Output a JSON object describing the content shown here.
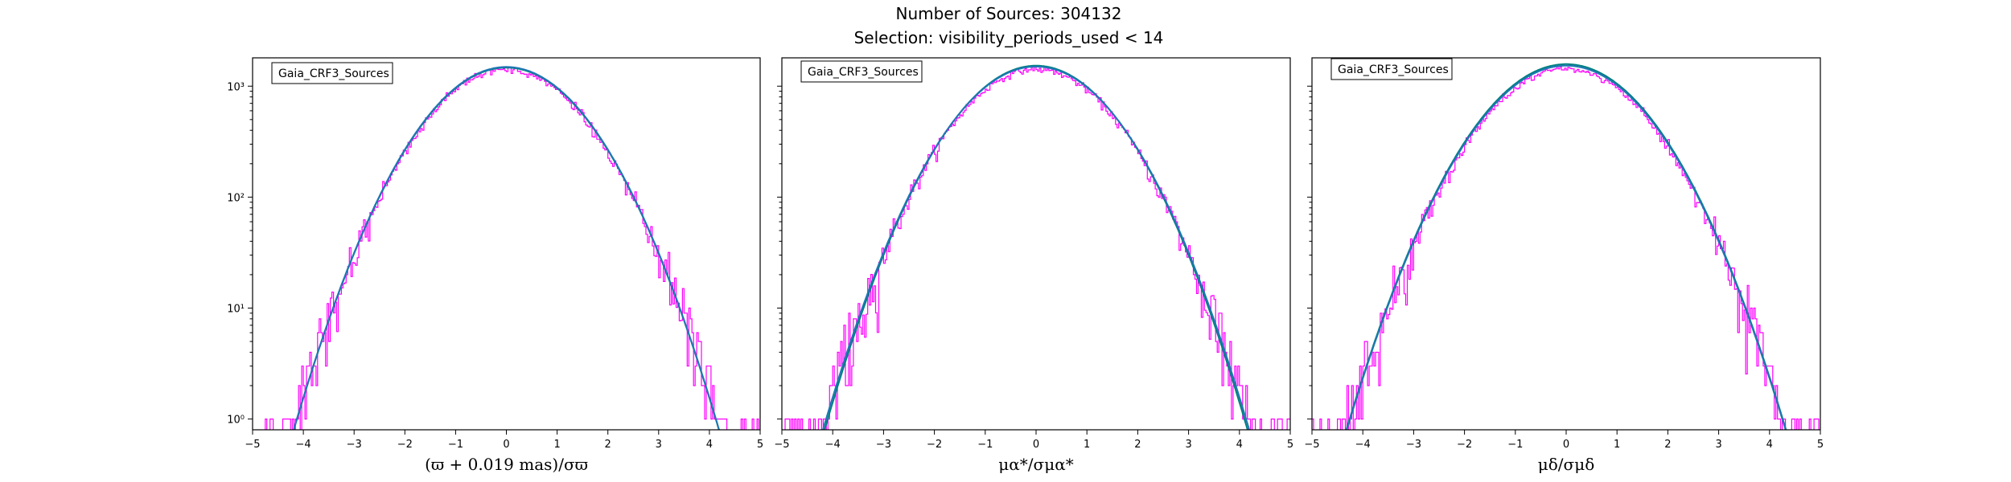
{
  "figure": {
    "title_line1": "Number of Sources: 304132",
    "title_line2": "Selection: visibility_periods_used < 14"
  },
  "colors": {
    "histogram": "#ff00ff",
    "gaussian_fit": "#1f77b4",
    "model_curve": "#008080"
  },
  "chart_data": [
    {
      "type": "line",
      "xlabel": "(ϖ + 0.019 mas)/σϖ",
      "legend": "Gaia_CRF3_Sources",
      "legend_position": "top-left",
      "xlim": [
        -5,
        5
      ],
      "ylim": [
        0.8,
        1800
      ],
      "yscale": "log",
      "xticks": [
        "−5",
        "−4",
        "−3",
        "−2",
        "−1",
        "0",
        "1",
        "2",
        "3",
        "4",
        "5"
      ],
      "yticks": [
        "10⁰",
        "10¹",
        "10²",
        "10³"
      ],
      "grid": false,
      "histogram_peak": 1410,
      "fit_peak": 1490,
      "model_peak": 1470,
      "fit_sigma": 1.08,
      "model_sigma": 1.08
    },
    {
      "type": "line",
      "xlabel": "μα*/σμα*",
      "legend": "Gaia_CRF3_Sources",
      "legend_position": "top-left",
      "xlim": [
        -5,
        5
      ],
      "ylim": [
        0.8,
        1800
      ],
      "yscale": "log",
      "xticks": [
        "−5",
        "−4",
        "−3",
        "−2",
        "−1",
        "0",
        "1",
        "2",
        "3",
        "4",
        "5"
      ],
      "grid": false,
      "histogram_peak": 1420,
      "fit_peak": 1500,
      "model_peak": 1530,
      "fit_sigma": 1.08,
      "model_sigma": 1.07
    },
    {
      "type": "line",
      "xlabel": "μδ/σμδ",
      "legend": "Gaia_CRF3_Sources",
      "legend_position": "top-left",
      "xlim": [
        -5,
        5
      ],
      "ylim": [
        0.8,
        1800
      ],
      "yscale": "log",
      "xticks": [
        "−5",
        "−4",
        "−3",
        "−2",
        "−1",
        "0",
        "1",
        "2",
        "3",
        "4",
        "5"
      ],
      "grid": false,
      "histogram_peak": 1430,
      "fit_peak": 1530,
      "model_peak": 1580,
      "fit_sigma": 1.11,
      "model_sigma": 1.11
    }
  ]
}
